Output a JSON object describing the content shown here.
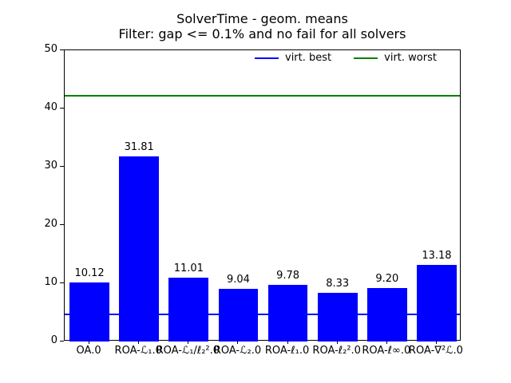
{
  "chart_data": {
    "type": "bar",
    "title": "SolverTime - geom. means",
    "subtitle": "Filter: gap <= 0.1% and no fail for all solvers",
    "categories": [
      "OA.0",
      "ROA-ℒ₁.0",
      "ROA-ℒ₁/ℓ₂².0",
      "ROA-ℒ₂.0",
      "ROA-ℓ₁.0",
      "ROA-ℓ₂².0",
      "ROA-ℓ∞.0",
      "ROA-∇²ℒ.0"
    ],
    "values": [
      10.12,
      31.81,
      11.01,
      9.04,
      9.78,
      8.33,
      9.2,
      13.18
    ],
    "value_labels": [
      "10.12",
      "31.81",
      "11.01",
      "9.04",
      "9.78",
      "8.33",
      "9.20",
      "13.18"
    ],
    "bar_color": "#0000ff",
    "xlabel": "",
    "ylabel": "",
    "ylim": [
      0,
      50
    ],
    "yticks": [
      0,
      10,
      20,
      30,
      40,
      50
    ],
    "grid": false,
    "legend": {
      "position": "top-inside-horizontal",
      "entries": [
        {
          "label": "virt. best",
          "color": "#0000ff"
        },
        {
          "label": "virt. worst",
          "color": "#008000"
        }
      ]
    },
    "reference_lines": [
      {
        "name": "virt. best",
        "value": 4.6,
        "color": "#0000ff"
      },
      {
        "name": "virt. worst",
        "value": 42.2,
        "color": "#008000"
      }
    ]
  }
}
